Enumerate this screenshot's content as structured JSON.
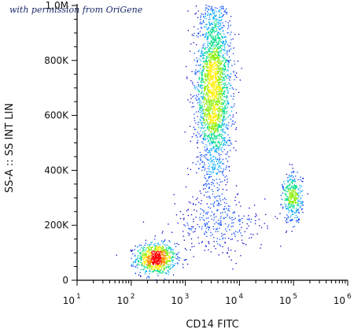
{
  "watermark": "with permission from OriGene",
  "chart_data": {
    "type": "scatter",
    "subtype": "flow-cytometry density dot plot",
    "xlabel": "CD14 FITC",
    "ylabel": "SS-A :: SS INT LIN",
    "x_scale": "log",
    "y_scale": "linear",
    "xlim": [
      10,
      1000000
    ],
    "ylim": [
      0,
      1000000
    ],
    "x_ticks": [
      {
        "base": "10",
        "exp": "1",
        "value": 10
      },
      {
        "base": "10",
        "exp": "2",
        "value": 100
      },
      {
        "base": "10",
        "exp": "3",
        "value": 1000
      },
      {
        "base": "10",
        "exp": "4",
        "value": 10000
      },
      {
        "base": "10",
        "exp": "5",
        "value": 100000
      },
      {
        "base": "10",
        "exp": "6",
        "value": 1000000
      }
    ],
    "y_ticks": [
      {
        "label": "0",
        "value": 0
      },
      {
        "label": "200K",
        "value": 200000
      },
      {
        "label": "400K",
        "value": 400000
      },
      {
        "label": "600K",
        "value": 600000
      },
      {
        "label": "800K",
        "value": 800000
      },
      {
        "label": "1,0M",
        "value": 1000000
      }
    ],
    "populations": [
      {
        "cx": 280,
        "cy": 80000,
        "sx_decades": 0.18,
        "sy": 28000,
        "count": 900
      },
      {
        "cx": 3300,
        "cy": 700000,
        "sx_decades": 0.16,
        "sy": 170000,
        "count": 2600
      },
      {
        "cx": 95000,
        "cy": 300000,
        "sx_decades": 0.09,
        "sy": 45000,
        "count": 380
      },
      {
        "cx": 4000,
        "cy": 200000,
        "sx_decades": 0.45,
        "sy": 55000,
        "count": 300
      }
    ],
    "density_colors": [
      "#0000cc",
      "#0044ff",
      "#00aaff",
      "#00dd88",
      "#88ee00",
      "#ffee00",
      "#ff8800",
      "#ff0000"
    ]
  }
}
